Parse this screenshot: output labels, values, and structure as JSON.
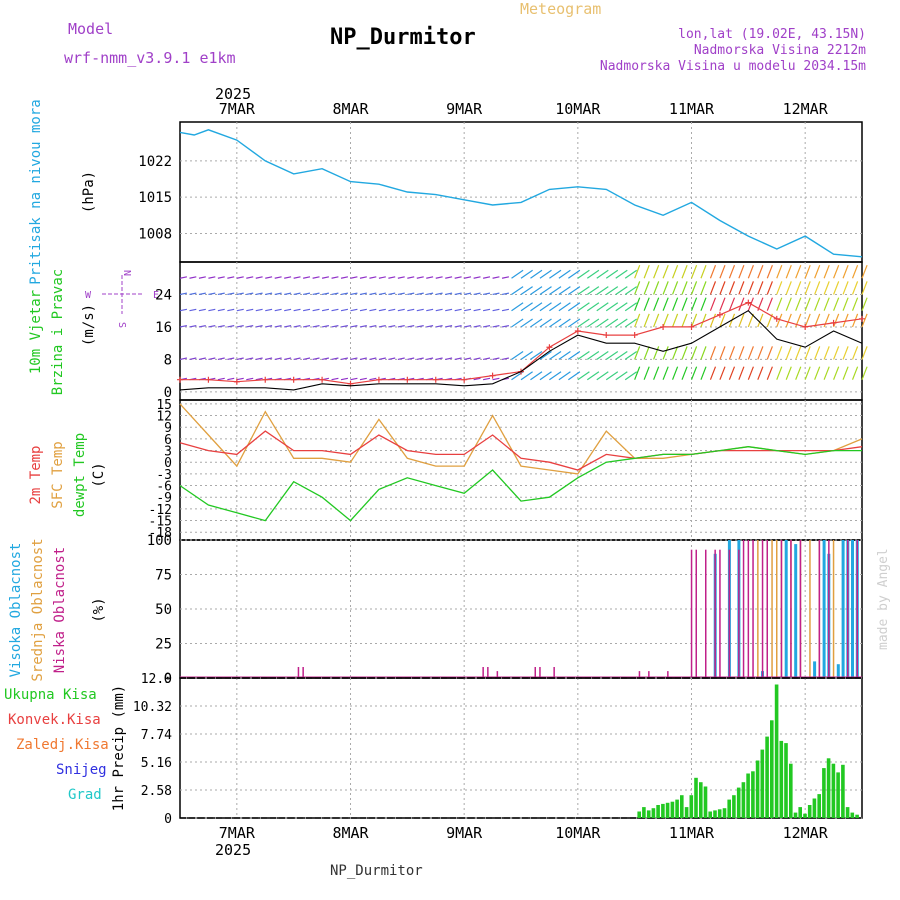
{
  "header": {
    "model_label": "Model",
    "model_name": "wrf-nmm_v3.9.1 e1km",
    "title": "NP_Durmitor",
    "subtitle": "Meteogram",
    "lonlat": "lon,lat (19.02E, 43.15N)",
    "altitude": "Nadmorska Visina 2212m",
    "model_altitude": "Nadmorska Visina u modelu 2034.15m",
    "footer": "NP_Durmitor",
    "credit": "made by Angel"
  },
  "colors": {
    "pressure": "#22a8e0",
    "temp2m": "#e84040",
    "sfc": "#e0a040",
    "dewpoint": "#22c822",
    "high_cloud": "#22a8e0",
    "mid_cloud": "#e0a040",
    "low_cloud": "#c0208a",
    "precip": "#22c822",
    "conv": "#e84040",
    "frozen": "#f07830",
    "snow": "#3030e0",
    "hail": "#20c8c8",
    "wind_text": "#a040c8",
    "ylabel_green": "#22c822"
  },
  "chart_data": [
    {
      "id": "pressure",
      "type": "line",
      "ylabel_left": "Pritisak na nivou mora",
      "ylabel_unit": "(hPa)",
      "yticks": [
        1008,
        1015,
        1022
      ],
      "ylim": [
        1002.5,
        1029.5
      ],
      "x_axis": {
        "top_labels": [
          "7MAR",
          "8MAR",
          "9MAR",
          "10MAR",
          "11MAR",
          "12MAR"
        ],
        "year": "2025"
      },
      "x": [
        0,
        3,
        6,
        12,
        18,
        24,
        30,
        36,
        42,
        48,
        54,
        60,
        66,
        72,
        78,
        84,
        90,
        96,
        102,
        108,
        114,
        120,
        126,
        132,
        138,
        144
      ],
      "values": [
        1027.5,
        1027,
        1028,
        1026,
        1022,
        1019.5,
        1020.5,
        1018,
        1017.5,
        1016,
        1015.5,
        1014.5,
        1013.5,
        1014,
        1016.5,
        1017,
        1016.5,
        1013.5,
        1011.5,
        1014,
        1010.5,
        1007.5,
        1005,
        1007.5,
        1004,
        1003.5
      ]
    },
    {
      "id": "wind",
      "type": "line",
      "ylabel_left": [
        "10m Vjetar",
        "Brzina i Pravac"
      ],
      "ylabel_unit": "(m/s)",
      "compass": {
        "n": "N",
        "e": "E",
        "s": "S",
        "w": "W"
      },
      "yticks": [
        0,
        8,
        16,
        24
      ],
      "ylim": [
        -2,
        32
      ],
      "x": [
        0,
        6,
        12,
        18,
        24,
        30,
        36,
        42,
        48,
        54,
        60,
        66,
        72,
        78,
        84,
        90,
        96,
        102,
        108,
        114,
        120,
        126,
        132,
        138,
        144
      ],
      "series": [
        {
          "values": [
            3,
            3,
            2.5,
            3,
            3,
            3,
            2,
            3,
            3,
            3,
            3,
            4,
            5,
            11,
            15,
            14,
            14,
            16,
            16,
            19,
            22,
            18,
            16,
            17,
            18
          ]
        },
        {
          "values": [
            0.5,
            1,
            1,
            1,
            0.5,
            2,
            1.5,
            2,
            2,
            2,
            1.5,
            2,
            5,
            10,
            14,
            12,
            12,
            10,
            12,
            16,
            20,
            13,
            11,
            15,
            12
          ]
        }
      ]
    },
    {
      "id": "temperature",
      "type": "line",
      "ylabel_left": [
        "2m Temp",
        "SFC Temp",
        "dewpt Temp"
      ],
      "ylabel_unit": "(C)",
      "yticks": [
        -18,
        -15,
        -12,
        -9,
        -6,
        -3,
        0,
        3,
        6,
        9,
        12,
        15
      ],
      "ylim": [
        -20,
        16
      ],
      "x": [
        0,
        6,
        12,
        18,
        24,
        30,
        36,
        42,
        48,
        54,
        60,
        66,
        72,
        78,
        84,
        90,
        96,
        102,
        108,
        114,
        120,
        126,
        132,
        138,
        144
      ],
      "series": [
        {
          "values": [
            5,
            3,
            2,
            8,
            3,
            3,
            2,
            7,
            3,
            2,
            2,
            7,
            1,
            0,
            -2,
            2,
            1,
            2,
            2,
            3,
            3,
            3,
            3,
            3,
            4
          ]
        },
        {
          "values": [
            15,
            7,
            -1,
            13,
            1,
            1,
            0,
            11,
            1,
            -1,
            -1,
            12,
            -1,
            -2,
            -3,
            8,
            1,
            1,
            2,
            3,
            4,
            3,
            2,
            3,
            6
          ]
        },
        {
          "values": [
            -6,
            -11,
            -13,
            -15,
            -5,
            -9,
            -15,
            -7,
            -4,
            -6,
            -8,
            -2,
            -10,
            -9,
            -4,
            0,
            1,
            2,
            2,
            3,
            4,
            3,
            2,
            3,
            3
          ]
        }
      ]
    },
    {
      "id": "clouds",
      "type": "bar",
      "ylabel_left": [
        "Visoka Oblacnost",
        "Srednja Oblacnost",
        "Niska Oblacnost"
      ],
      "ylabel_unit": "(%)",
      "yticks": [
        0,
        25,
        50,
        75,
        100
      ],
      "ylim": [
        0,
        100
      ],
      "series": [
        {
          "x": [
            113,
            116,
            118,
            123,
            128,
            130,
            134,
            136,
            137,
            139,
            140,
            141,
            142,
            143
          ],
          "values": [
            90,
            100,
            100,
            5,
            100,
            97,
            12,
            100,
            90,
            10,
            100,
            100,
            100,
            100
          ]
        },
        {
          "x": [
            122,
            124,
            125,
            126,
            127,
            129,
            131,
            133,
            135,
            138
          ],
          "values": [
            100,
            18,
            100,
            100,
            100,
            100,
            100,
            100,
            100,
            100
          ]
        },
        {
          "x": [
            25,
            26,
            64,
            65,
            67,
            75,
            76,
            79,
            97,
            99,
            103,
            108,
            109,
            111,
            113,
            114,
            116,
            118,
            119,
            120,
            121,
            123,
            124,
            127,
            129,
            131,
            135,
            137,
            141,
            143
          ],
          "values": [
            8,
            8,
            8,
            8,
            5,
            8,
            8,
            8,
            5,
            5,
            5,
            93,
            93,
            93,
            93,
            93,
            93,
            93,
            100,
            100,
            100,
            100,
            100,
            100,
            100,
            100,
            100,
            100,
            100,
            100
          ]
        }
      ]
    },
    {
      "id": "precip",
      "type": "bar",
      "ylabel_left": [
        "Ukupna Kisa",
        "Konvek.Kisa",
        "Zaledj.Kisa",
        "Snijeg",
        "Grad"
      ],
      "ylabel_unit": "1hr Precip (mm)",
      "yticks": [
        0,
        2.58,
        5.16,
        7.74,
        10.32,
        12.9
      ],
      "ylim": [
        0,
        12.9
      ],
      "x_axis": {
        "bottom_labels": [
          "7MAR",
          "8MAR",
          "9MAR",
          "10MAR",
          "11MAR",
          "12MAR"
        ],
        "year": "2025"
      },
      "x": [
        97,
        98,
        99,
        100,
        101,
        102,
        103,
        104,
        105,
        106,
        107,
        108,
        109,
        110,
        111,
        112,
        113,
        114,
        115,
        116,
        117,
        118,
        119,
        120,
        121,
        122,
        123,
        124,
        125,
        126,
        127,
        128,
        129,
        130,
        131,
        132,
        133,
        134,
        135,
        136,
        137,
        138,
        139,
        140,
        141,
        142,
        143
      ],
      "values": [
        0.6,
        1.0,
        0.7,
        0.9,
        1.2,
        1.3,
        1.4,
        1.5,
        1.7,
        2.1,
        1.0,
        2.1,
        3.7,
        3.3,
        2.9,
        0.6,
        0.7,
        0.8,
        0.9,
        1.7,
        2.1,
        2.8,
        3.3,
        4.1,
        4.3,
        5.3,
        6.3,
        7.5,
        9.0,
        12.3,
        7.1,
        6.9,
        5.0,
        0.5,
        1.0,
        0.4,
        1.2,
        1.8,
        2.2,
        4.6,
        5.5,
        5.0,
        4.2,
        4.9,
        1.0,
        0.5,
        0.3
      ]
    }
  ]
}
